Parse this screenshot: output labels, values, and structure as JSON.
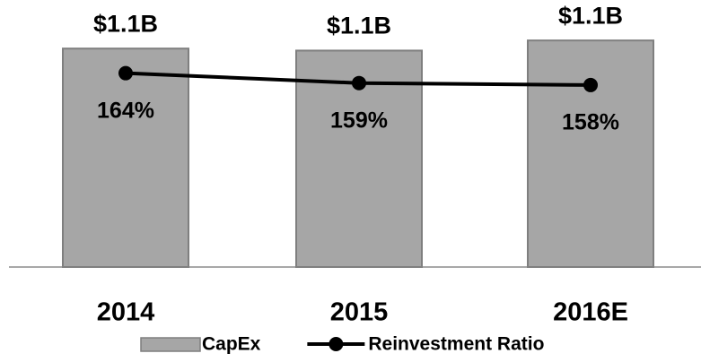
{
  "chart_data": {
    "type": "combo",
    "categories": [
      "2014",
      "2015",
      "2016E"
    ],
    "series": [
      {
        "name": "CapEx",
        "type": "bar",
        "color": "#a6a6a6",
        "values": [
          1.08,
          1.07,
          1.12
        ],
        "value_labels": [
          "$1.1B",
          "$1.1B",
          "$1.1B"
        ]
      },
      {
        "name": "Reinvestment Ratio",
        "type": "line",
        "axis": "y2",
        "color": "#000000",
        "values": [
          164,
          159,
          158
        ],
        "value_labels": [
          "164%",
          "159%",
          "158%"
        ]
      }
    ],
    "ylim": [
      0,
      1.32
    ],
    "y2lim": [
      66,
      201
    ],
    "legend": "bottom"
  }
}
